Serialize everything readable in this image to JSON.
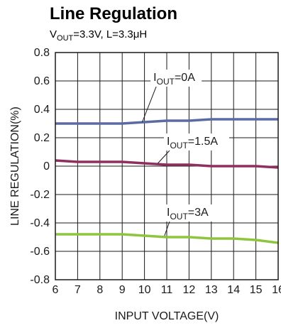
{
  "chart_data": {
    "type": "line",
    "title": "Line Regulation",
    "subtitle": "VOUT=3.3V, L=3.3μH",
    "xlabel": "INPUT VOLTAGE(V)",
    "ylabel": "LINE REGULATION(%)",
    "xlim": [
      6,
      16
    ],
    "ylim": [
      -0.8,
      0.8
    ],
    "xticks": [
      "6",
      "7",
      "8",
      "9",
      "10",
      "11",
      "12",
      "13",
      "14",
      "15",
      "16"
    ],
    "yticks": [
      "0.8",
      "0.6",
      "0.4",
      "0.2",
      "0",
      "-0.2",
      "-0.4",
      "-0.6",
      "-0.8"
    ],
    "grid": true,
    "series": [
      {
        "name": "IOUT=0A",
        "color": "#5b6aa3",
        "x": [
          6,
          7,
          8,
          9,
          10,
          11,
          12,
          13,
          14,
          15,
          16
        ],
        "y": [
          0.3,
          0.3,
          0.3,
          0.3,
          0.31,
          0.32,
          0.32,
          0.33,
          0.33,
          0.33,
          0.33
        ]
      },
      {
        "name": "IOUT=1.5A",
        "color": "#8e2f5f",
        "x": [
          6,
          7,
          8,
          9,
          10,
          11,
          12,
          13,
          14,
          15,
          16
        ],
        "y": [
          0.04,
          0.03,
          0.03,
          0.03,
          0.02,
          0.01,
          0.01,
          0.0,
          0.0,
          0.0,
          -0.01
        ]
      },
      {
        "name": "IOUT=3A",
        "color": "#8fc43d",
        "x": [
          6,
          7,
          8,
          9,
          10,
          11,
          12,
          13,
          14,
          15,
          16
        ],
        "y": [
          -0.48,
          -0.48,
          -0.48,
          -0.48,
          -0.49,
          -0.5,
          -0.5,
          -0.51,
          -0.51,
          -0.52,
          -0.54
        ]
      }
    ],
    "annotations": [
      {
        "main": "I",
        "sub": "OUT",
        "rest": "=0A",
        "x": 10.4,
        "y": 0.6,
        "point": [
          9.9,
          0.31
        ]
      },
      {
        "main": "I",
        "sub": "OUT",
        "rest": "=1.5A",
        "x": 11.0,
        "y": 0.15,
        "point": [
          10.6,
          0.02
        ]
      },
      {
        "main": "I",
        "sub": "OUT",
        "rest": "=3A",
        "x": 11.0,
        "y": -0.35,
        "point": [
          10.9,
          -0.49
        ]
      }
    ]
  }
}
